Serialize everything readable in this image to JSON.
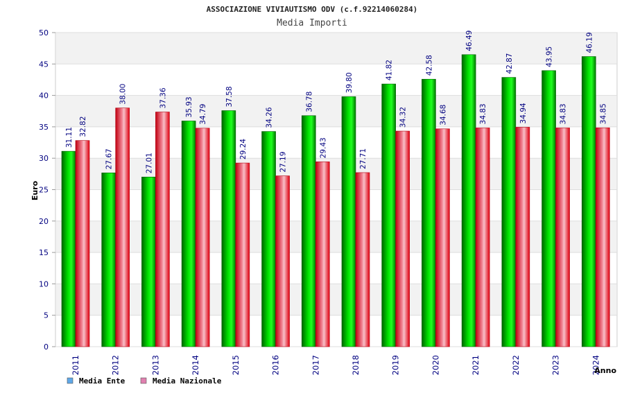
{
  "chart_data": {
    "type": "bar",
    "title": "ASSOCIAZIONE VIVIAUTISMO ODV (c.f.92214060284)",
    "subtitle": "Media Importi",
    "xlabel": "Anno",
    "ylabel": "Euro",
    "ylim": [
      0,
      50
    ],
    "yticks": [
      0,
      5,
      10,
      15,
      20,
      25,
      30,
      35,
      40,
      45,
      50
    ],
    "grid": true,
    "legend_position": "bottom-left",
    "categories": [
      "2011",
      "2012",
      "2013",
      "2014",
      "2015",
      "2016",
      "2017",
      "2018",
      "2019",
      "2020",
      "2021",
      "2022",
      "2023",
      "2024"
    ],
    "series": [
      {
        "name": "Media Ente",
        "color": "#00c000",
        "legend_color": "#5fa8e8",
        "values": [
          31.11,
          27.67,
          27.01,
          35.93,
          37.58,
          34.26,
          36.78,
          39.8,
          41.82,
          42.58,
          46.49,
          42.87,
          43.95,
          46.19
        ],
        "labels": [
          "31.11",
          "27.67",
          "27.01",
          "35.93",
          "37.58",
          "34.26",
          "36.78",
          "39.80",
          "41.82",
          "42.58",
          "46.49",
          "42.87",
          "43.95",
          "46.19"
        ]
      },
      {
        "name": "Media Nazionale",
        "color": "#e81020",
        "legend_color": "#e080b0",
        "values": [
          32.82,
          38.0,
          37.36,
          34.79,
          29.24,
          27.19,
          29.43,
          27.71,
          34.32,
          34.68,
          34.83,
          34.94,
          34.83,
          34.85
        ],
        "labels": [
          "32.82",
          "38.00",
          "37.36",
          "34.79",
          "29.24",
          "27.19",
          "29.43",
          "27.71",
          "34.32",
          "34.68",
          "34.83",
          "34.94",
          "34.83",
          "34.85"
        ]
      }
    ]
  }
}
